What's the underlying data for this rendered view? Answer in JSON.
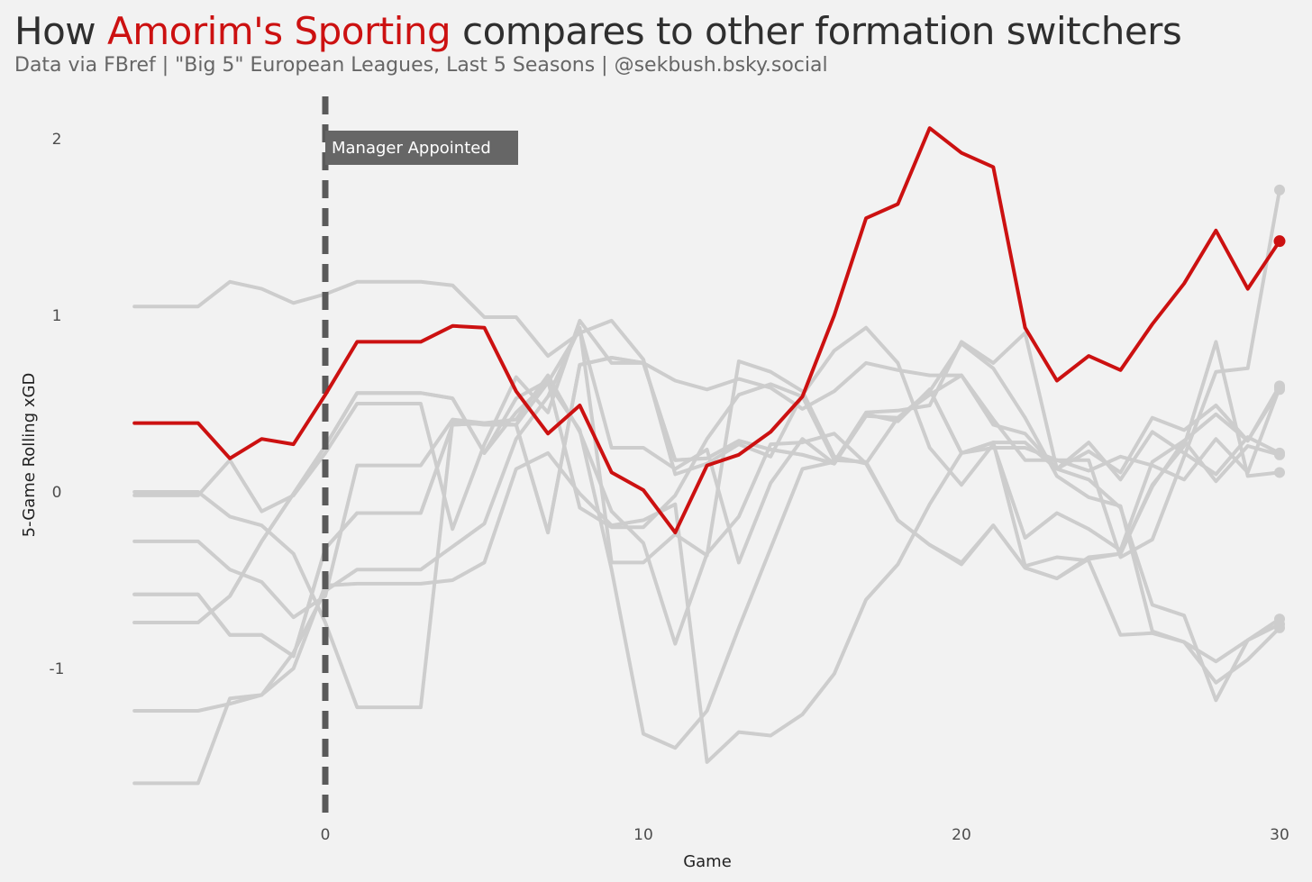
{
  "title": {
    "prefix": "How ",
    "highlight": "Amorim's Sporting",
    "suffix": " compares to other formation switchers"
  },
  "subtitle": "Data via FBref | \"Big 5\" European Leagues, Last 5 Seasons | @sekbush.bsky.social",
  "colors": {
    "background": "#f2f2f2",
    "highlight": "#cc1111",
    "other": "#cdcdcd",
    "annotation_box": "#666666",
    "vline": "#5a5a5a"
  },
  "chart_data": {
    "type": "line",
    "title": "How Amorim's Sporting compares to other formation switchers",
    "subtitle": "Data via FBref | \"Big 5\" European Leagues, Last 5 Seasons | @sekbush.bsky.social",
    "xlabel": "Game",
    "ylabel": "5-Game Rolling xGD",
    "xlim": [
      -6,
      30
    ],
    "ylim": [
      -1.8,
      2.2
    ],
    "x_ticks": [
      0,
      10,
      20,
      30
    ],
    "x_tick_labels": [
      "0",
      "10",
      "20",
      "30"
    ],
    "y_ticks": [
      -1,
      0,
      1,
      2
    ],
    "y_tick_labels": [
      "-1",
      "0",
      "1",
      "2"
    ],
    "grid": false,
    "legend": "none",
    "annotations": [
      {
        "x": 0,
        "type": "vline",
        "style": "dashed",
        "label": "Manager Appointed"
      }
    ],
    "x": [
      -6,
      -5,
      -4,
      -3,
      -2,
      -1,
      0,
      1,
      2,
      3,
      4,
      5,
      6,
      7,
      8,
      9,
      10,
      11,
      12,
      13,
      14,
      15,
      16,
      17,
      18,
      19,
      20,
      21,
      22,
      23,
      24,
      25,
      26,
      27,
      28,
      29,
      30
    ],
    "highlight_series": {
      "name": "",
      "values": [
        0.39,
        0.39,
        0.39,
        0.19,
        0.3,
        0.27,
        0.55,
        0.85,
        0.85,
        0.85,
        0.94,
        0.93,
        0.57,
        0.33,
        0.49,
        0.11,
        0.01,
        -0.23,
        0.15,
        0.21,
        0.34,
        0.54,
        1.0,
        1.55,
        1.63,
        2.06,
        1.92,
        1.84,
        0.93,
        0.63,
        0.77,
        0.69,
        0.95,
        1.18,
        1.48,
        1.15,
        1.42
      ]
    },
    "background_series": [
      {
        "values": [
          1.05,
          1.05,
          1.05,
          1.19,
          1.15,
          1.07,
          1.12,
          1.19,
          1.19,
          1.19,
          1.17,
          0.99,
          0.99,
          0.77,
          0.9,
          0.97,
          0.75,
          0.1,
          0.16,
          0.27,
          0.2,
          0.55,
          0.8,
          0.93,
          0.73,
          0.25,
          0.04,
          0.27,
          -0.26,
          -0.12,
          -0.21,
          -0.33,
          0.17,
          0.29,
          0.44,
          0.29,
          0.58
        ]
      },
      {
        "values": [
          0.0,
          0.0,
          0.0,
          -0.14,
          -0.19,
          -0.35,
          -0.74,
          -1.22,
          -1.22,
          -1.22,
          0.4,
          0.38,
          0.38,
          0.62,
          0.35,
          -0.44,
          -1.37,
          -1.45,
          -1.24,
          -0.77,
          -0.32,
          0.13,
          0.17,
          0.45,
          0.46,
          0.49,
          0.85,
          0.73,
          0.9,
          0.13,
          0.07,
          -0.09,
          -0.64,
          -0.7,
          -1.18,
          -0.84,
          -0.72
        ]
      },
      {
        "values": [
          -0.02,
          -0.02,
          -0.02,
          0.18,
          -0.11,
          -0.02,
          0.22,
          0.5,
          0.5,
          0.5,
          -0.21,
          0.27,
          0.65,
          0.45,
          0.97,
          0.73,
          0.73,
          0.63,
          0.58,
          0.64,
          0.59,
          0.47,
          0.57,
          0.73,
          0.69,
          0.66,
          0.66,
          0.38,
          0.33,
          0.13,
          0.23,
          0.11,
          0.42,
          0.35,
          0.49,
          0.29,
          0.6
        ]
      },
      {
        "values": [
          -0.28,
          -0.28,
          -0.28,
          -0.44,
          -0.51,
          -0.71,
          -0.59,
          0.15,
          0.15,
          0.15,
          0.41,
          0.39,
          0.41,
          0.66,
          0.34,
          -0.11,
          -0.29,
          -0.86,
          -0.35,
          -0.14,
          0.27,
          0.28,
          0.33,
          0.16,
          0.42,
          0.55,
          0.66,
          0.41,
          0.18,
          0.18,
          0.12,
          0.2,
          0.15,
          0.07,
          0.3,
          0.11,
          0.59
        ]
      },
      {
        "values": [
          -0.58,
          -0.58,
          -0.58,
          -0.81,
          -0.81,
          -0.93,
          -0.32,
          -0.12,
          -0.12,
          -0.12,
          0.38,
          0.39,
          0.38,
          -0.23,
          0.72,
          0.76,
          0.73,
          0.18,
          0.19,
          0.29,
          0.24,
          0.21,
          0.16,
          0.44,
          0.4,
          0.58,
          0.22,
          0.28,
          0.28,
          0.13,
          0.28,
          0.07,
          0.34,
          0.22,
          0.1,
          0.31,
          0.22
        ]
      },
      {
        "values": [
          -0.74,
          -0.74,
          -0.74,
          -0.59,
          -0.28,
          -0.01,
          0.26,
          0.56,
          0.56,
          0.56,
          0.53,
          0.22,
          0.53,
          0.63,
          -0.09,
          -0.2,
          -0.2,
          -0.02,
          0.3,
          0.55,
          0.61,
          0.54,
          0.18,
          0.17,
          -0.16,
          -0.3,
          -0.41,
          -0.19,
          -0.43,
          -0.49,
          -0.37,
          -0.35,
          0.03,
          0.29,
          0.06,
          0.26,
          0.21
        ]
      },
      {
        "values": [
          -1.24,
          -1.24,
          -1.24,
          -1.2,
          -1.15,
          -0.91,
          -0.56,
          -0.44,
          -0.44,
          -0.44,
          -0.31,
          -0.18,
          0.3,
          0.54,
          0.93,
          -0.4,
          -0.4,
          -0.24,
          -0.36,
          0.74,
          0.68,
          0.57,
          0.2,
          0.16,
          -0.16,
          -0.3,
          -0.4,
          -0.19,
          -0.43,
          -0.49,
          -0.38,
          -0.35,
          0.04,
          0.26,
          0.85,
          0.09,
          0.11
        ]
      },
      {
        "values": [
          -1.65,
          -1.65,
          -1.65,
          -1.17,
          -1.15,
          -1.0,
          -0.53,
          -0.52,
          -0.52,
          -0.52,
          -0.5,
          -0.4,
          0.13,
          0.22,
          -0.01,
          -0.19,
          -0.16,
          -0.07,
          -1.53,
          -1.36,
          -1.38,
          -1.26,
          -1.03,
          -0.61,
          -0.41,
          -0.07,
          0.22,
          0.25,
          0.25,
          0.18,
          0.18,
          -0.37,
          -0.27,
          0.2,
          0.68,
          0.7,
          1.71
        ]
      },
      {
        "values": [
          -0.74,
          -0.74,
          -0.74,
          -0.59,
          -0.28,
          -0.01,
          0.26,
          0.56,
          0.56,
          0.56,
          0.53,
          0.22,
          0.45,
          0.62,
          0.92,
          0.25,
          0.25,
          0.13,
          0.24,
          -0.4,
          0.05,
          0.3,
          0.16,
          0.43,
          0.42,
          0.57,
          0.84,
          0.7,
          0.42,
          0.09,
          -0.03,
          -0.08,
          -0.79,
          -0.85,
          -1.08,
          -0.95,
          -0.77
        ]
      },
      {
        "values": [
          -0.58,
          -0.58,
          -0.58,
          -0.81,
          -0.81,
          -0.93,
          -0.32,
          -0.12,
          -0.12,
          -0.12,
          0.38,
          0.39,
          0.38,
          -0.23,
          0.72,
          0.76,
          0.73,
          0.18,
          0.19,
          0.29,
          0.24,
          0.21,
          0.16,
          0.44,
          0.4,
          0.58,
          0.22,
          0.28,
          -0.42,
          -0.37,
          -0.39,
          -0.81,
          -0.8,
          -0.85,
          -0.96,
          -0.84,
          -0.75
        ]
      }
    ]
  }
}
